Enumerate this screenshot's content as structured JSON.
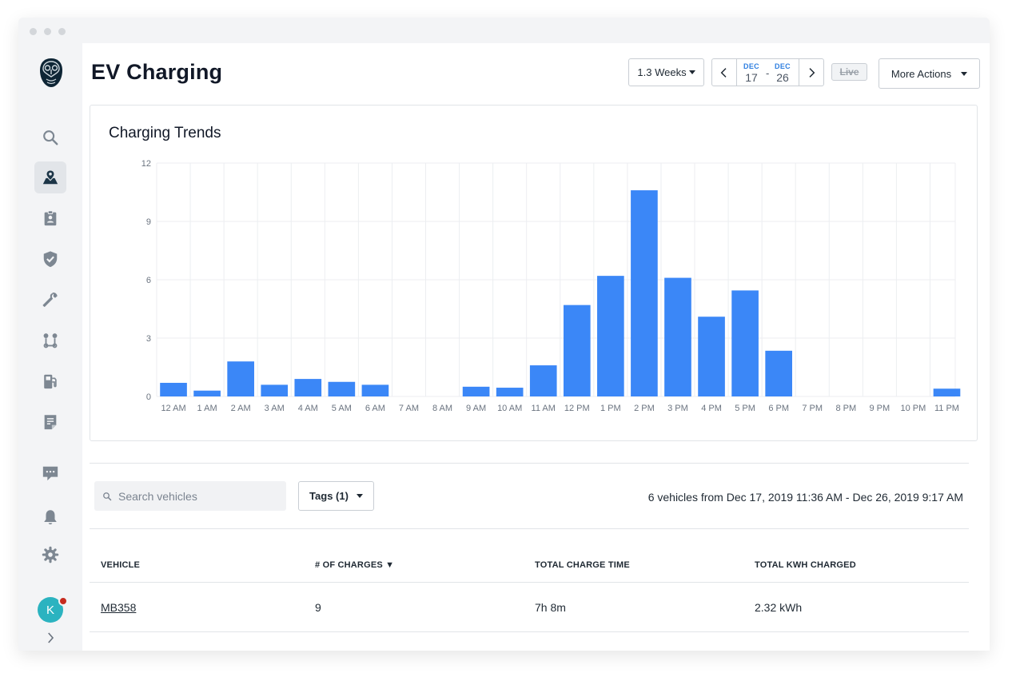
{
  "page": {
    "title": "EV Charging"
  },
  "toolbar": {
    "range_label": "1.3 Weeks",
    "start_month": "DEC",
    "start_day": "17",
    "separator": "-",
    "end_month": "DEC",
    "end_day": "26",
    "live_label": "Live",
    "more_actions_label": "More Actions"
  },
  "sidebar": {
    "items": [
      {
        "icon": "search-icon"
      },
      {
        "icon": "map-pin-icon",
        "active": true
      },
      {
        "icon": "clipboard-badge-icon"
      },
      {
        "icon": "shield-check-icon"
      },
      {
        "icon": "wrench-icon"
      },
      {
        "icon": "route-icon"
      },
      {
        "icon": "fuel-pump-icon"
      },
      {
        "icon": "document-icon"
      },
      {
        "icon": "message-icon"
      },
      {
        "icon": "bell-icon"
      },
      {
        "icon": "gear-icon"
      }
    ],
    "avatar_initial": "K",
    "expand_icon": "chevron-right-icon"
  },
  "chart_data": {
    "type": "bar",
    "title": "Charging Trends",
    "categories": [
      "12 AM",
      "1 AM",
      "2 AM",
      "3 AM",
      "4 AM",
      "5 AM",
      "6 AM",
      "7 AM",
      "8 AM",
      "9 AM",
      "10 AM",
      "11 AM",
      "12 PM",
      "1 PM",
      "2 PM",
      "3 PM",
      "4 PM",
      "5 PM",
      "6 PM",
      "7 PM",
      "8 PM",
      "9 PM",
      "10 PM",
      "11 PM"
    ],
    "values": [
      0.7,
      0.3,
      1.8,
      0.6,
      0.9,
      0.75,
      0.6,
      0,
      0,
      0.5,
      0.45,
      1.6,
      4.7,
      6.2,
      10.6,
      6.1,
      4.1,
      5.45,
      2.35,
      0,
      0,
      0,
      0,
      0.4
    ],
    "yticks": [
      0,
      3,
      6,
      9,
      12
    ],
    "ylim": [
      0,
      12
    ],
    "xlabel": "",
    "ylabel": "",
    "grid": true,
    "color": "#3b87f7"
  },
  "filters": {
    "search_placeholder": "Search vehicles",
    "tags_label": "Tags (1)",
    "summary": "6 vehicles from Dec 17, 2019 11:36 AM - Dec 26, 2019 9:17 AM"
  },
  "table": {
    "headers": [
      "VEHICLE",
      "# OF CHARGES ▼",
      "TOTAL CHARGE TIME",
      "TOTAL KWH CHARGED"
    ],
    "rows": [
      [
        "MB358",
        "9",
        "7h 8m",
        "2.32 kWh"
      ]
    ]
  }
}
